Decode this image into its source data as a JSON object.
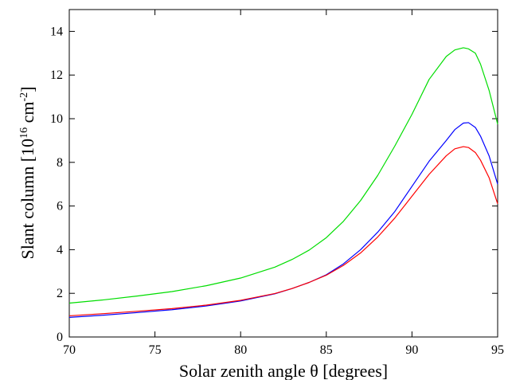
{
  "chart_data": {
    "type": "line",
    "xlabel": "Solar zenith angle θ  [degrees]",
    "ylabel": {
      "prefix": "Slant column [10",
      "exp1": "16",
      "mid": " cm",
      "exp2": "-2",
      "suffix": "]"
    },
    "xlim": [
      70,
      95
    ],
    "ylim": [
      0,
      15
    ],
    "xticks": [
      70,
      75,
      80,
      85,
      90,
      95
    ],
    "yticks": [
      0,
      2,
      4,
      6,
      8,
      10,
      12,
      14
    ],
    "grid": false,
    "legend": "none",
    "x": [
      70,
      72,
      74,
      76,
      78,
      80,
      82,
      83,
      84,
      85,
      86,
      87,
      88,
      89,
      90,
      91,
      92,
      92.5,
      93,
      93.3,
      93.7,
      94,
      94.5,
      95
    ],
    "series": [
      {
        "color": "#00dd00",
        "values": [
          1.55,
          1.7,
          1.88,
          2.08,
          2.35,
          2.7,
          3.2,
          3.55,
          3.98,
          4.55,
          5.3,
          6.25,
          7.4,
          8.75,
          10.2,
          11.8,
          12.85,
          13.15,
          13.25,
          13.2,
          13.0,
          12.5,
          11.3,
          9.75
        ]
      },
      {
        "color": "#0000ff",
        "values": [
          0.9,
          1.0,
          1.12,
          1.25,
          1.42,
          1.65,
          1.98,
          2.22,
          2.5,
          2.85,
          3.35,
          4.0,
          4.8,
          5.75,
          6.9,
          8.05,
          9.0,
          9.5,
          9.8,
          9.82,
          9.6,
          9.2,
          8.3,
          7.0
        ]
      },
      {
        "color": "#ff0000",
        "values": [
          0.97,
          1.07,
          1.18,
          1.3,
          1.46,
          1.68,
          1.99,
          2.22,
          2.5,
          2.83,
          3.28,
          3.85,
          4.58,
          5.45,
          6.45,
          7.45,
          8.3,
          8.62,
          8.72,
          8.68,
          8.45,
          8.1,
          7.3,
          6.1
        ]
      }
    ]
  }
}
